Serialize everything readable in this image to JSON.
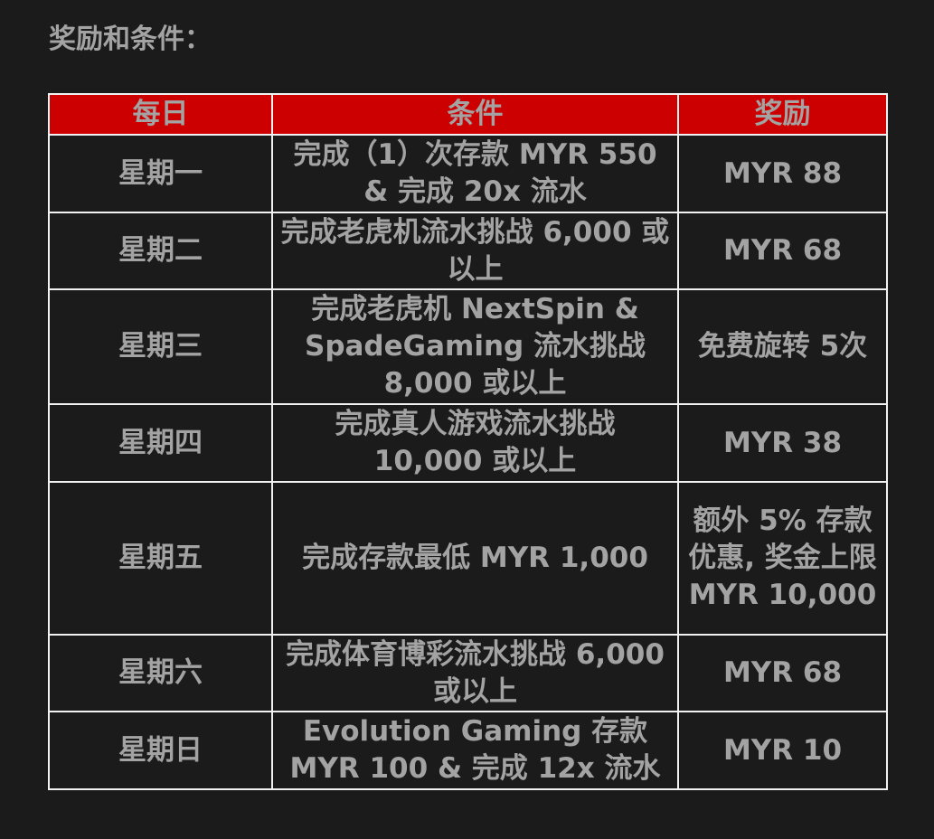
{
  "title": "奖励和条件：",
  "header_color": "#cc0000",
  "table": {
    "headers": [
      "每日",
      "条件",
      "奖励"
    ],
    "rows": [
      {
        "day": "星期一",
        "condition": "完成（1）次存款 MYR 550 & 完成 20x 流水",
        "reward": "MYR 88"
      },
      {
        "day": "星期二",
        "condition": "完成老虎机流水挑战 6,000 或以上",
        "reward": "MYR 68"
      },
      {
        "day": "星期三",
        "condition": "完成老虎机 NextSpin & SpadeGaming 流水挑战 8,000 或以上",
        "reward": "免费旋转 5次"
      },
      {
        "day": "星期四",
        "condition": "完成真人游戏流水挑战 10,000 或以上",
        "reward": "MYR 38"
      },
      {
        "day": "星期五",
        "condition": "完成存款最低 MYR 1,000",
        "reward": "额外 5% 存款优惠, 奖金上限 MYR 10,000"
      },
      {
        "day": "星期六",
        "condition": "完成体育博彩流水挑战 6,000 或以上",
        "reward": "MYR 68"
      },
      {
        "day": "星期日",
        "condition": "Evolution Gaming 存款 MYR 100 & 完成 12x 流水",
        "reward": "MYR 10"
      }
    ]
  }
}
